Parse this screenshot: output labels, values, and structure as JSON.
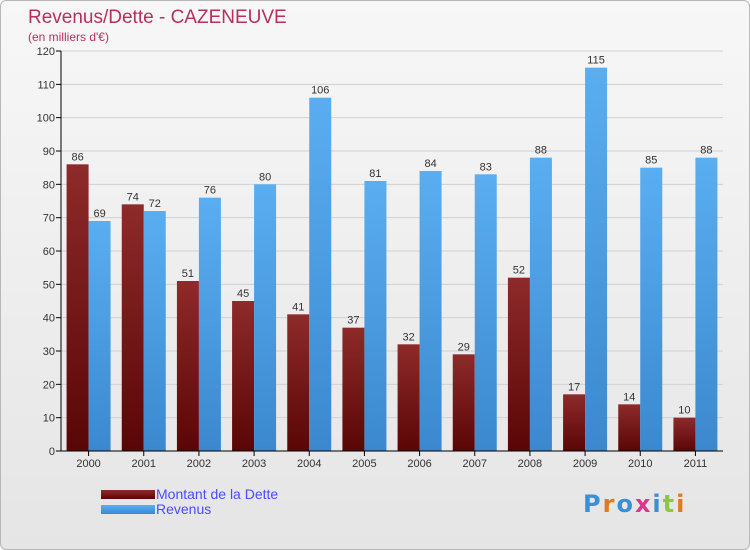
{
  "header": {
    "title": "Revenus/Dette - CAZENEUVE",
    "subtitle": "(en milliers d'€)"
  },
  "legend": {
    "items": [
      {
        "label": "Montant de la Dette",
        "color": "#6e1010"
      },
      {
        "label": "Revenus",
        "color": "#4aa0e6"
      }
    ]
  },
  "logo": {
    "text": "Proxiti"
  },
  "colors": {
    "debt_light": "#8e2a2a",
    "debt_dark": "#5a0606",
    "rev_light": "#5aaef0",
    "rev_dark": "#3b88cf",
    "axis": "#000000",
    "grid": "#d0d0d0",
    "label": "#333333"
  },
  "chart_data": {
    "type": "bar",
    "title": "Revenus/Dette - CAZENEUVE",
    "subtitle": "(en milliers d'€)",
    "categories": [
      "2000",
      "2001",
      "2002",
      "2003",
      "2004",
      "2005",
      "2006",
      "2007",
      "2008",
      "2009",
      "2010",
      "2011"
    ],
    "series": [
      {
        "name": "Montant de la Dette",
        "values": [
          86,
          74,
          51,
          45,
          41,
          37,
          32,
          29,
          52,
          17,
          14,
          10
        ]
      },
      {
        "name": "Revenus",
        "values": [
          69,
          72,
          76,
          80,
          106,
          81,
          84,
          83,
          88,
          115,
          85,
          88
        ]
      }
    ],
    "ylim": [
      0,
      120
    ],
    "yticks": [
      0,
      10,
      20,
      30,
      40,
      50,
      60,
      70,
      80,
      90,
      100,
      110,
      120
    ],
    "grid": true,
    "legend_position": "bottom-left"
  }
}
